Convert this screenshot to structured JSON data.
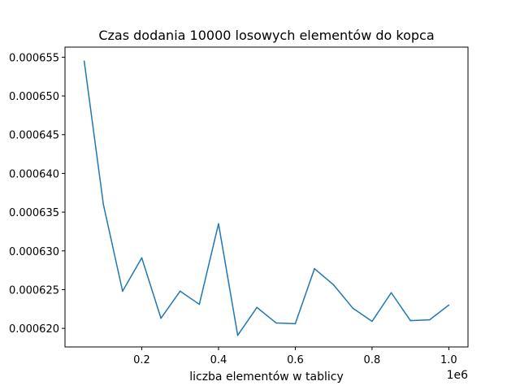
{
  "chart_data": {
    "type": "line",
    "title": "Czas dodania 10000 losowych elementów do kopca",
    "xlabel": "liczba elementów w tablicy",
    "ylabel": "",
    "x_offset_label": "1e6",
    "xlim": [
      0,
      1050000
    ],
    "ylim": [
      0.0006176,
      0.0006563
    ],
    "x_ticks": [
      0.2,
      0.4,
      0.6,
      0.8,
      1.0
    ],
    "x_tick_labels": [
      "0.2",
      "0.4",
      "0.6",
      "0.8",
      "1.0"
    ],
    "y_ticks": [
      0.00062,
      0.000625,
      0.00063,
      0.000635,
      0.00064,
      0.000645,
      0.00065,
      0.000655
    ],
    "y_tick_labels": [
      "0.000620",
      "0.000625",
      "0.000630",
      "0.000635",
      "0.000640",
      "0.000645",
      "0.000650",
      "0.000655"
    ],
    "grid": false,
    "series": [
      {
        "color": "#1f77b4",
        "x": [
          50000,
          100000,
          150000,
          200000,
          250000,
          300000,
          350000,
          400000,
          450000,
          500000,
          550000,
          600000,
          650000,
          700000,
          750000,
          800000,
          850000,
          900000,
          950000,
          1000000
        ],
        "values": [
          0.0006545,
          0.000636,
          0.0006248,
          0.0006291,
          0.0006213,
          0.0006248,
          0.0006231,
          0.0006335,
          0.0006191,
          0.0006227,
          0.0006207,
          0.0006206,
          0.0006277,
          0.0006256,
          0.0006226,
          0.0006209,
          0.0006246,
          0.000621,
          0.0006211,
          0.000623
        ]
      }
    ]
  }
}
